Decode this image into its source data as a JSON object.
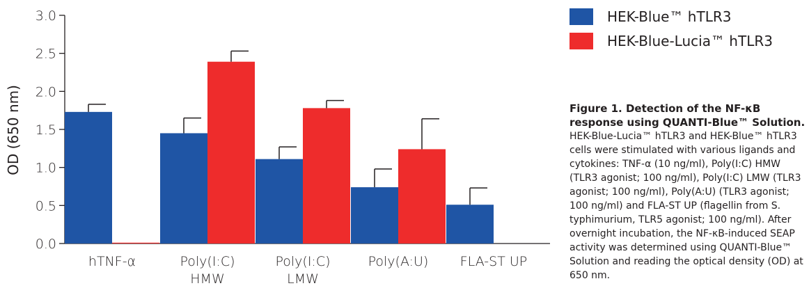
{
  "chart_data": {
    "type": "bar",
    "title": "",
    "xlabel": "",
    "ylabel": "OD (650 nm)",
    "ylim": [
      0,
      3.0
    ],
    "yticks": [
      "0.0",
      "0.5",
      "1.0",
      "1.5",
      "2.0",
      "2.5",
      "3.0"
    ],
    "categories": [
      [
        "hTNF-α"
      ],
      [
        "Poly(I:C)",
        "HMW"
      ],
      [
        "Poly(I:C)",
        "LMW"
      ],
      [
        "Poly(A:U)"
      ],
      [
        "FLA-ST UP"
      ]
    ],
    "series": [
      {
        "name": "HEK-Blue™ hTLR3",
        "color": "#1f55a5",
        "values": [
          1.73,
          1.45,
          1.11,
          0.74,
          0.51
        ],
        "errors": [
          0.1,
          0.2,
          0.16,
          0.24,
          0.22
        ]
      },
      {
        "name": "HEK-Blue-Lucia™ hTLR3",
        "color": "#ee2c2c",
        "values": [
          0.01,
          2.39,
          1.78,
          1.24,
          null
        ],
        "errors": [
          0.0,
          0.14,
          0.1,
          0.4,
          null
        ]
      }
    ],
    "legend": "top-right",
    "grid": false
  },
  "caption": {
    "title": "Figure 1. Detection of the NF-κB response using QUANTI-Blue™ Solution.",
    "text": "HEK-Blue-Lucia™ hTLR3 and HEK-Blue™ hTLR3 cells were stimulated with various ligands and cytokines: TNF-α (10 ng/ml), Poly(I:C) HMW (TLR3 agonist; 100 ng/ml), Poly(I:C) LMW (TLR3 agonist; 100 ng/ml), Poly(A:U) (TLR3 agonist; 100 ng/ml) and FLA-ST UP (flagellin from S. typhimurium, TLR5 agonist; 100 ng/ml). After overnight incubation, the NF-κB-induced SEAP activity was determined using QUANTI-Blue™ Solution and reading the optical density (OD) at 650 nm."
  }
}
